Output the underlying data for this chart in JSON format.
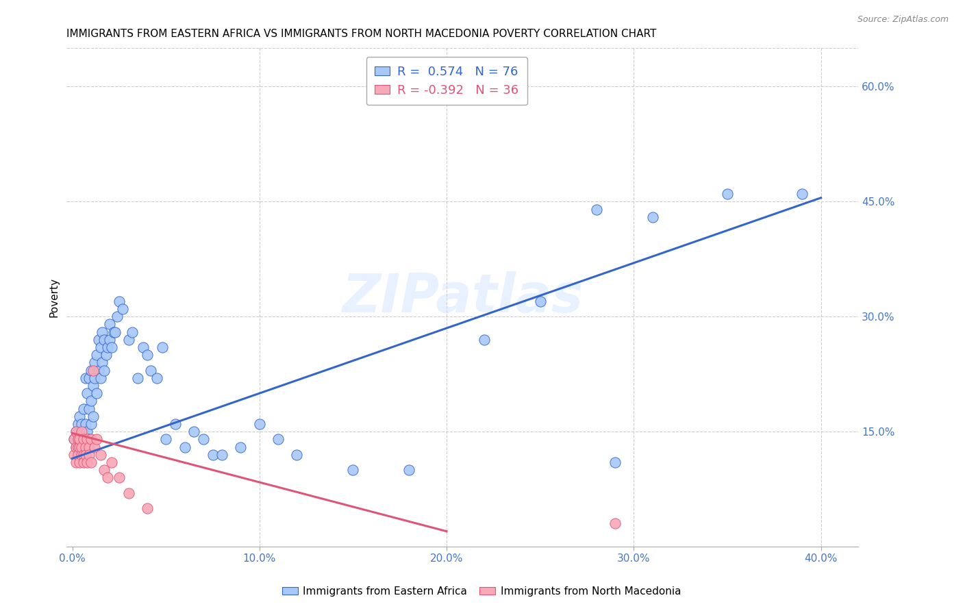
{
  "title": "IMMIGRANTS FROM EASTERN AFRICA VS IMMIGRANTS FROM NORTH MACEDONIA POVERTY CORRELATION CHART",
  "source": "Source: ZipAtlas.com",
  "xlabel_ticks": [
    "0.0%",
    "10.0%",
    "20.0%",
    "30.0%",
    "40.0%"
  ],
  "xlabel_vals": [
    0.0,
    0.1,
    0.2,
    0.3,
    0.4
  ],
  "ylabel": "Poverty",
  "ylabel_right_ticks": [
    "15.0%",
    "30.0%",
    "45.0%",
    "60.0%"
  ],
  "ylabel_right_vals": [
    0.15,
    0.3,
    0.45,
    0.6
  ],
  "ylim": [
    0.0,
    0.65
  ],
  "xlim": [
    -0.003,
    0.42
  ],
  "R_blue": 0.574,
  "N_blue": 76,
  "R_pink": -0.392,
  "N_pink": 36,
  "legend_label_blue": "Immigrants from Eastern Africa",
  "legend_label_pink": "Immigrants from North Macedonia",
  "color_blue": "#a8c8f8",
  "color_pink": "#f8a8b8",
  "line_color_blue": "#3366cc",
  "line_color_pink": "#e05575",
  "watermark": "ZIPatlas",
  "title_fontsize": 11,
  "axis_label_color": "#4477cc",
  "blue_scatter_x": [
    0.001,
    0.002,
    0.002,
    0.003,
    0.003,
    0.004,
    0.004,
    0.004,
    0.005,
    0.005,
    0.005,
    0.006,
    0.006,
    0.007,
    0.007,
    0.007,
    0.008,
    0.008,
    0.009,
    0.009,
    0.009,
    0.01,
    0.01,
    0.01,
    0.011,
    0.011,
    0.012,
    0.012,
    0.013,
    0.013,
    0.014,
    0.014,
    0.015,
    0.015,
    0.016,
    0.016,
    0.017,
    0.017,
    0.018,
    0.019,
    0.02,
    0.02,
    0.021,
    0.022,
    0.023,
    0.024,
    0.025,
    0.027,
    0.03,
    0.032,
    0.035,
    0.038,
    0.04,
    0.042,
    0.045,
    0.048,
    0.05,
    0.055,
    0.06,
    0.065,
    0.07,
    0.075,
    0.08,
    0.09,
    0.1,
    0.11,
    0.12,
    0.15,
    0.18,
    0.22,
    0.25,
    0.28,
    0.31,
    0.35,
    0.29,
    0.39
  ],
  "blue_scatter_y": [
    0.14,
    0.13,
    0.15,
    0.14,
    0.16,
    0.13,
    0.15,
    0.17,
    0.14,
    0.16,
    0.13,
    0.15,
    0.18,
    0.14,
    0.16,
    0.22,
    0.15,
    0.2,
    0.14,
    0.18,
    0.22,
    0.16,
    0.19,
    0.23,
    0.17,
    0.21,
    0.22,
    0.24,
    0.2,
    0.25,
    0.23,
    0.27,
    0.22,
    0.26,
    0.24,
    0.28,
    0.23,
    0.27,
    0.25,
    0.26,
    0.27,
    0.29,
    0.26,
    0.28,
    0.28,
    0.3,
    0.32,
    0.31,
    0.27,
    0.28,
    0.22,
    0.26,
    0.25,
    0.23,
    0.22,
    0.26,
    0.14,
    0.16,
    0.13,
    0.15,
    0.14,
    0.12,
    0.12,
    0.13,
    0.16,
    0.14,
    0.12,
    0.1,
    0.1,
    0.27,
    0.32,
    0.44,
    0.43,
    0.46,
    0.11,
    0.46
  ],
  "pink_scatter_x": [
    0.001,
    0.001,
    0.002,
    0.002,
    0.002,
    0.003,
    0.003,
    0.003,
    0.004,
    0.004,
    0.004,
    0.005,
    0.005,
    0.005,
    0.006,
    0.006,
    0.006,
    0.007,
    0.007,
    0.008,
    0.008,
    0.009,
    0.009,
    0.01,
    0.01,
    0.011,
    0.012,
    0.013,
    0.015,
    0.017,
    0.019,
    0.021,
    0.025,
    0.03,
    0.04,
    0.29
  ],
  "pink_scatter_y": [
    0.14,
    0.12,
    0.13,
    0.15,
    0.11,
    0.14,
    0.13,
    0.12,
    0.13,
    0.11,
    0.14,
    0.12,
    0.15,
    0.13,
    0.12,
    0.14,
    0.11,
    0.13,
    0.12,
    0.14,
    0.11,
    0.13,
    0.12,
    0.11,
    0.14,
    0.23,
    0.13,
    0.14,
    0.12,
    0.1,
    0.09,
    0.11,
    0.09,
    0.07,
    0.05,
    0.03
  ],
  "blue_trend_x": [
    0.0,
    0.4
  ],
  "blue_trend_y": [
    0.115,
    0.455
  ],
  "pink_trend_x": [
    0.0,
    0.2
  ],
  "pink_trend_y": [
    0.148,
    0.02
  ]
}
